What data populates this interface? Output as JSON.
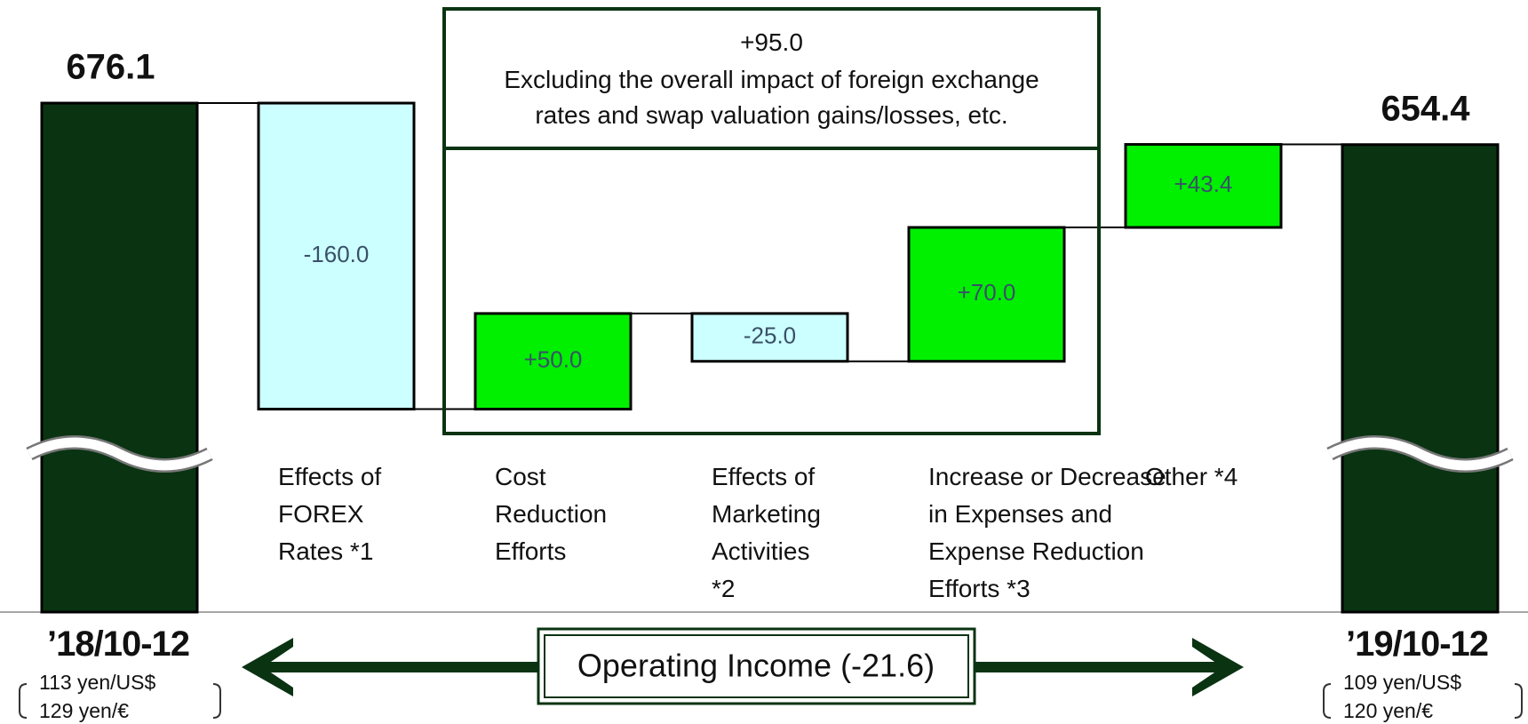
{
  "chart_data": {
    "type": "waterfall",
    "categories": [
      "’18/10-12",
      "Effects of\nFOREX\nRates *1",
      "Cost\nReduction\nEfforts",
      "Effects of\nMarketing\nActivities\n*2",
      "Increase or Decrease\nin Expenses and\nExpense Reduction\nEfforts *3",
      "Other *4",
      "’19/10-12"
    ],
    "values": [
      676.1,
      -160,
      50,
      -25,
      70,
      43.4,
      654.4
    ],
    "value_labels": [
      "676.1",
      "-160.0",
      "+50.0",
      "-25.0",
      "+70.0",
      "+43.4",
      "654.4"
    ],
    "colors": {
      "total": "#0a3312",
      "increase": "#00f000",
      "decrease": "#ccffff"
    },
    "ylim": [
      410,
      730
    ],
    "annotation_title": "+95.0",
    "annotation": "Excluding the overall impact of foreign exchange\nrates and swap valuation gains/losses, etc.",
    "rates": [
      [
        "113 yen/US$",
        "129 yen/€"
      ],
      [
        "109 yen/US$",
        "120 yen/€"
      ]
    ],
    "footnote": "Operating Income (-21.6)"
  }
}
